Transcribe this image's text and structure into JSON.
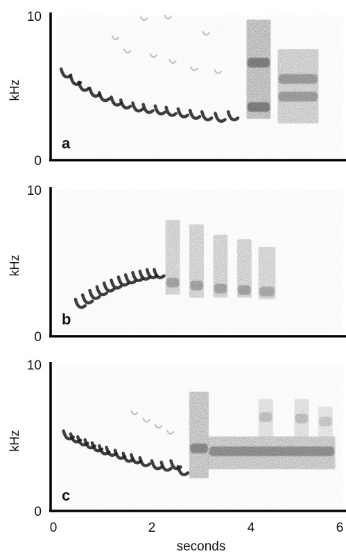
{
  "chart_data": {
    "type": "spectrogram",
    "xlabel": "seconds",
    "x_ticks": [
      "0",
      "2",
      "4",
      "6"
    ],
    "xlim": [
      0,
      6
    ],
    "panels": [
      {
        "letter": "a",
        "ylabel": "kHz",
        "y_ticks": [
          "10",
          "0"
        ],
        "ylim": [
          0,
          10
        ],
        "notes": [
          {
            "t": 0.25,
            "f": 5.8
          },
          {
            "t": 0.45,
            "f": 5.3
          },
          {
            "t": 0.62,
            "f": 4.9
          },
          {
            "t": 0.85,
            "f": 4.5
          },
          {
            "t": 1.05,
            "f": 4.2
          },
          {
            "t": 1.3,
            "f": 3.9
          },
          {
            "t": 1.5,
            "f": 3.7
          },
          {
            "t": 1.75,
            "f": 3.5
          },
          {
            "t": 1.97,
            "f": 3.4
          },
          {
            "t": 2.22,
            "f": 3.3
          },
          {
            "t": 2.45,
            "f": 3.2
          },
          {
            "t": 2.7,
            "f": 3.1
          },
          {
            "t": 2.95,
            "f": 3.0
          },
          {
            "t": 3.2,
            "f": 2.9
          },
          {
            "t": 3.48,
            "f": 2.8
          },
          {
            "t": 3.75,
            "f": 2.9
          }
        ],
        "harmonics": [
          {
            "t": 1.3,
            "f": 8.2
          },
          {
            "t": 1.55,
            "f": 7.3
          },
          {
            "t": 1.9,
            "f": 9.5
          },
          {
            "t": 2.1,
            "f": 7.0
          },
          {
            "t": 2.4,
            "f": 9.6
          },
          {
            "t": 2.5,
            "f": 6.6
          },
          {
            "t": 2.95,
            "f": 6.1
          },
          {
            "t": 3.2,
            "f": 8.5
          },
          {
            "t": 3.45,
            "f": 5.9
          }
        ],
        "bands": [
          {
            "t0": 4.05,
            "t1": 4.55,
            "f0": 2.8,
            "f1": 9.5,
            "core": [
              6.6,
              3.6
            ],
            "strength": 0.85
          },
          {
            "t0": 4.7,
            "t1": 5.55,
            "f0": 2.5,
            "f1": 7.5,
            "core": [
              5.5,
              4.3
            ],
            "strength": 0.6
          }
        ]
      },
      {
        "letter": "b",
        "ylabel": "kHz",
        "y_ticks": [
          "10",
          "0"
        ],
        "ylim": [
          0,
          10
        ],
        "notes": [
          {
            "t": 0.55,
            "f": 2.1
          },
          {
            "t": 0.7,
            "f": 2.4
          },
          {
            "t": 0.85,
            "f": 2.7
          },
          {
            "t": 1.0,
            "f": 2.95
          },
          {
            "t": 1.15,
            "f": 3.2
          },
          {
            "t": 1.3,
            "f": 3.4
          },
          {
            "t": 1.45,
            "f": 3.6
          },
          {
            "t": 1.6,
            "f": 3.75
          },
          {
            "t": 1.75,
            "f": 3.9
          },
          {
            "t": 1.9,
            "f": 4.0
          },
          {
            "t": 2.05,
            "f": 4.1
          },
          {
            "t": 2.2,
            "f": 4.1
          }
        ],
        "harmonics": [],
        "bands": [
          {
            "t0": 2.35,
            "t1": 2.65,
            "f0": 2.8,
            "f1": 7.8,
            "core": [
              3.6
            ],
            "strength": 0.55
          },
          {
            "t0": 2.85,
            "t1": 3.15,
            "f0": 2.6,
            "f1": 7.5,
            "core": [
              3.4
            ],
            "strength": 0.55
          },
          {
            "t0": 3.35,
            "t1": 3.65,
            "f0": 2.6,
            "f1": 6.8,
            "core": [
              3.2
            ],
            "strength": 0.55
          },
          {
            "t0": 3.85,
            "t1": 4.15,
            "f0": 2.6,
            "f1": 6.5,
            "core": [
              3.1
            ],
            "strength": 0.55
          },
          {
            "t0": 4.3,
            "t1": 4.65,
            "f0": 2.5,
            "f1": 6.0,
            "core": [
              3.0
            ],
            "strength": 0.5
          }
        ]
      },
      {
        "letter": "c",
        "ylabel": "kHz",
        "y_ticks": [
          "10",
          "0"
        ],
        "ylim": [
          0,
          10
        ],
        "notes": [
          {
            "t": 0.3,
            "f": 5.0
          },
          {
            "t": 0.45,
            "f": 4.8
          },
          {
            "t": 0.6,
            "f": 4.6
          },
          {
            "t": 0.75,
            "f": 4.4
          },
          {
            "t": 0.9,
            "f": 4.2
          },
          {
            "t": 1.05,
            "f": 4.0
          },
          {
            "t": 1.2,
            "f": 3.9
          },
          {
            "t": 1.38,
            "f": 3.7
          },
          {
            "t": 1.55,
            "f": 3.5
          },
          {
            "t": 1.72,
            "f": 3.4
          },
          {
            "t": 1.9,
            "f": 3.2
          },
          {
            "t": 2.15,
            "f": 3.0
          },
          {
            "t": 2.35,
            "f": 2.9
          },
          {
            "t": 2.55,
            "f": 3.0
          },
          {
            "t": 2.7,
            "f": 2.6
          }
        ],
        "harmonics": [
          {
            "t": 1.7,
            "f": 6.5
          },
          {
            "t": 1.95,
            "f": 6.0
          },
          {
            "t": 2.2,
            "f": 5.6
          },
          {
            "t": 2.45,
            "f": 5.2
          }
        ],
        "bands": [
          {
            "t0": 2.85,
            "t1": 3.25,
            "f0": 2.2,
            "f1": 8.0,
            "core": [
              4.2
            ],
            "strength": 0.75
          },
          {
            "t0": 3.25,
            "t1": 5.9,
            "f0": 2.8,
            "f1": 5.0,
            "core": [
              4.0
            ],
            "strength": 0.7
          },
          {
            "t0": 4.3,
            "t1": 4.6,
            "f0": 5.0,
            "f1": 7.5,
            "core": [
              6.3
            ],
            "strength": 0.35
          },
          {
            "t0": 5.05,
            "t1": 5.35,
            "f0": 5.0,
            "f1": 7.5,
            "core": [
              6.2
            ],
            "strength": 0.35
          },
          {
            "t0": 5.55,
            "t1": 5.85,
            "f0": 5.0,
            "f1": 7.0,
            "core": [
              6.0
            ],
            "strength": 0.3
          }
        ]
      }
    ]
  }
}
